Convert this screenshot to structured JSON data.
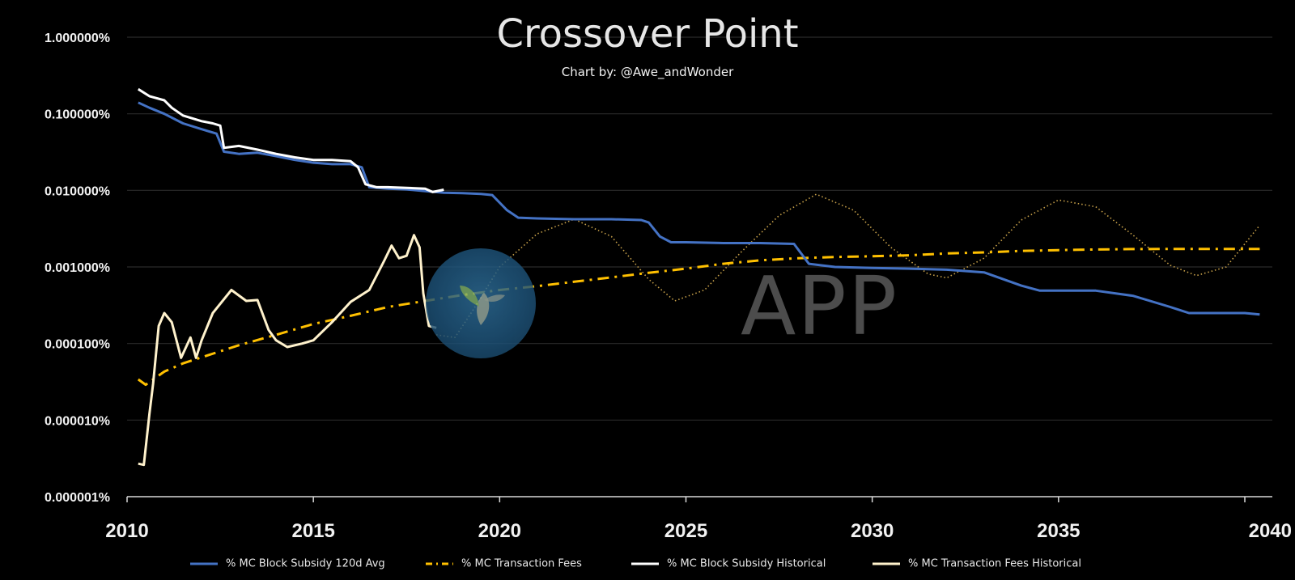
{
  "chart_data": {
    "type": "line",
    "title": "Crossover Point",
    "subtitle": "Chart by: @Awe_andWonder",
    "y_scale": "log",
    "ylim": [
      1e-06,
      1.0
    ],
    "xlim": [
      2010,
      2040.4
    ],
    "grid": "horizontal",
    "legend_position": "bottom",
    "y_ticks": [
      {
        "value": 1.0,
        "label": "1.000000%"
      },
      {
        "value": 0.1,
        "label": "0.100000%"
      },
      {
        "value": 0.01,
        "label": "0.010000%"
      },
      {
        "value": 0.001,
        "label": "0.001000%"
      },
      {
        "value": 0.0001,
        "label": "0.000100%"
      },
      {
        "value": 1e-05,
        "label": "0.000010%"
      },
      {
        "value": 1e-06,
        "label": "0.000001%"
      }
    ],
    "x_ticks": [
      {
        "value": 2010,
        "label": "2010"
      },
      {
        "value": 2015,
        "label": "2015"
      },
      {
        "value": 2020,
        "label": "2020"
      },
      {
        "value": 2025,
        "label": "2025"
      },
      {
        "value": 2030,
        "label": "2030"
      },
      {
        "value": 2035,
        "label": "2035"
      },
      {
        "value": 2040,
        "label": "2040"
      }
    ],
    "series": [
      {
        "name": "% MC Block Subsidy 120d Avg",
        "color": "#4472c4",
        "style": "solid",
        "points": [
          [
            2010.3,
            0.14
          ],
          [
            2010.6,
            0.12
          ],
          [
            2011.0,
            0.1
          ],
          [
            2011.5,
            0.075
          ],
          [
            2012.0,
            0.063
          ],
          [
            2012.4,
            0.055
          ],
          [
            2012.6,
            0.032
          ],
          [
            2013.0,
            0.03
          ],
          [
            2013.5,
            0.031
          ],
          [
            2014.0,
            0.028
          ],
          [
            2014.5,
            0.025
          ],
          [
            2015.0,
            0.023
          ],
          [
            2015.5,
            0.022
          ],
          [
            2016.0,
            0.022
          ],
          [
            2016.3,
            0.02
          ],
          [
            2016.5,
            0.011
          ],
          [
            2017.0,
            0.0105
          ],
          [
            2017.5,
            0.0103
          ],
          [
            2018.0,
            0.0098
          ],
          [
            2018.5,
            0.0093
          ],
          [
            2019.0,
            0.0092
          ],
          [
            2019.5,
            0.009
          ],
          [
            2019.8,
            0.0087
          ],
          [
            2020.2,
            0.0055
          ],
          [
            2020.5,
            0.0044
          ],
          [
            2021.0,
            0.0043
          ],
          [
            2022.0,
            0.0042
          ],
          [
            2023.0,
            0.0042
          ],
          [
            2023.8,
            0.0041
          ],
          [
            2024.0,
            0.0038
          ],
          [
            2024.3,
            0.0025
          ],
          [
            2024.6,
            0.0021
          ],
          [
            2025.0,
            0.0021
          ],
          [
            2026.0,
            0.00205
          ],
          [
            2027.0,
            0.00205
          ],
          [
            2027.9,
            0.002
          ],
          [
            2028.3,
            0.0011
          ],
          [
            2029.0,
            0.001
          ],
          [
            2030.0,
            0.00097
          ],
          [
            2031.0,
            0.00095
          ],
          [
            2032.0,
            0.00092
          ],
          [
            2033.0,
            0.00085
          ],
          [
            2034.0,
            0.00057
          ],
          [
            2034.5,
            0.00049
          ],
          [
            2035.0,
            0.00049
          ],
          [
            2036.0,
            0.00049
          ],
          [
            2037.0,
            0.00042
          ],
          [
            2038.0,
            0.0003
          ],
          [
            2038.5,
            0.00025
          ],
          [
            2039.0,
            0.00025
          ],
          [
            2040.0,
            0.00025
          ],
          [
            2040.4,
            0.00024
          ]
        ]
      },
      {
        "name": "% MC Transaction Fees",
        "color": "#ffc000",
        "style": "dash-dot",
        "points": [
          [
            2010.3,
            3.4e-05
          ],
          [
            2010.5,
            2.9e-05
          ],
          [
            2011.0,
            4.3e-05
          ],
          [
            2011.5,
            5.5e-05
          ],
          [
            2012.0,
            6.6e-05
          ],
          [
            2013.0,
            9.5e-05
          ],
          [
            2014.0,
            0.00013
          ],
          [
            2015.0,
            0.00018
          ],
          [
            2016.0,
            0.00023
          ],
          [
            2017.0,
            0.0003
          ],
          [
            2018.0,
            0.00036
          ],
          [
            2019.0,
            0.00043
          ],
          [
            2020.0,
            0.0005
          ],
          [
            2021.0,
            0.00056
          ],
          [
            2022.0,
            0.00064
          ],
          [
            2023.0,
            0.00073
          ],
          [
            2024.0,
            0.00084
          ],
          [
            2025.0,
            0.00095
          ],
          [
            2026.0,
            0.0011
          ],
          [
            2027.0,
            0.00122
          ],
          [
            2028.0,
            0.0013
          ],
          [
            2029.0,
            0.00135
          ],
          [
            2030.0,
            0.00138
          ],
          [
            2031.0,
            0.00142
          ],
          [
            2032.0,
            0.0015
          ],
          [
            2033.0,
            0.00155
          ],
          [
            2034.0,
            0.00162
          ],
          [
            2035.0,
            0.00166
          ],
          [
            2036.0,
            0.00169
          ],
          [
            2037.0,
            0.00171
          ],
          [
            2038.0,
            0.00172
          ],
          [
            2039.0,
            0.00172
          ],
          [
            2040.4,
            0.00172
          ]
        ]
      },
      {
        "name": "% MC Block Subsidy Historical",
        "color": "#ffffff",
        "style": "solid",
        "points": [
          [
            2010.3,
            0.21
          ],
          [
            2010.6,
            0.17
          ],
          [
            2011.0,
            0.15
          ],
          [
            2011.2,
            0.12
          ],
          [
            2011.5,
            0.095
          ],
          [
            2012.0,
            0.08
          ],
          [
            2012.3,
            0.075
          ],
          [
            2012.5,
            0.07
          ],
          [
            2012.6,
            0.036
          ],
          [
            2013.0,
            0.038
          ],
          [
            2013.5,
            0.034
          ],
          [
            2014.0,
            0.03
          ],
          [
            2014.5,
            0.027
          ],
          [
            2015.0,
            0.025
          ],
          [
            2015.5,
            0.025
          ],
          [
            2016.0,
            0.024
          ],
          [
            2016.2,
            0.02
          ],
          [
            2016.4,
            0.012
          ],
          [
            2016.7,
            0.011
          ],
          [
            2017.0,
            0.011
          ],
          [
            2017.5,
            0.0108
          ],
          [
            2018.0,
            0.0105
          ],
          [
            2018.2,
            0.0095
          ],
          [
            2018.5,
            0.0102
          ]
        ]
      },
      {
        "name": "% MC Transaction Fees Historical",
        "color": "#fff2cc",
        "style": "solid",
        "points": [
          [
            2010.3,
            2.7e-06
          ],
          [
            2010.45,
            2.6e-06
          ],
          [
            2010.6,
            1.2e-05
          ],
          [
            2010.7,
            3e-05
          ],
          [
            2010.85,
            0.00017
          ],
          [
            2011.0,
            0.00025
          ],
          [
            2011.2,
            0.00019
          ],
          [
            2011.45,
            6.5e-05
          ],
          [
            2011.7,
            0.00012
          ],
          [
            2011.85,
            6.5e-05
          ],
          [
            2012.0,
            0.00011
          ],
          [
            2012.3,
            0.00025
          ],
          [
            2012.8,
            0.0005
          ],
          [
            2013.2,
            0.00036
          ],
          [
            2013.5,
            0.00037
          ],
          [
            2013.8,
            0.00015
          ],
          [
            2014.0,
            0.00011
          ],
          [
            2014.3,
            9e-05
          ],
          [
            2014.7,
            0.0001
          ],
          [
            2015.0,
            0.00011
          ],
          [
            2015.5,
            0.00019
          ],
          [
            2016.0,
            0.00035
          ],
          [
            2016.5,
            0.0005
          ],
          [
            2016.9,
            0.0012
          ],
          [
            2017.1,
            0.0019
          ],
          [
            2017.3,
            0.0013
          ],
          [
            2017.5,
            0.0014
          ],
          [
            2017.7,
            0.0026
          ],
          [
            2017.85,
            0.0018
          ],
          [
            2017.95,
            0.00045
          ],
          [
            2018.1,
            0.00017
          ],
          [
            2018.3,
            0.00016
          ]
        ]
      },
      {
        "name": "",
        "color": "#c9a24a",
        "style": "dotted",
        "points": [
          [
            2018.3,
            0.00013
          ],
          [
            2018.8,
            0.00012
          ],
          [
            2019.3,
            0.00028
          ],
          [
            2020.0,
            0.001
          ],
          [
            2021.0,
            0.0027
          ],
          [
            2022.0,
            0.0042
          ],
          [
            2023.0,
            0.0025
          ],
          [
            2024.0,
            0.00069
          ],
          [
            2024.7,
            0.00036
          ],
          [
            2025.5,
            0.0005
          ],
          [
            2026.5,
            0.0016
          ],
          [
            2027.5,
            0.0047
          ],
          [
            2028.5,
            0.0089
          ],
          [
            2029.5,
            0.0055
          ],
          [
            2030.5,
            0.0018
          ],
          [
            2031.5,
            0.00081
          ],
          [
            2032.0,
            0.00072
          ],
          [
            2033.0,
            0.0013
          ],
          [
            2034.0,
            0.0041
          ],
          [
            2035.0,
            0.0075
          ],
          [
            2036.0,
            0.0061
          ],
          [
            2037.0,
            0.0026
          ],
          [
            2038.0,
            0.00105
          ],
          [
            2038.7,
            0.00077
          ],
          [
            2039.5,
            0.001
          ],
          [
            2040.4,
            0.0035
          ]
        ]
      }
    ]
  },
  "watermark": {
    "text": "APP",
    "icon": "sprout-logo"
  }
}
